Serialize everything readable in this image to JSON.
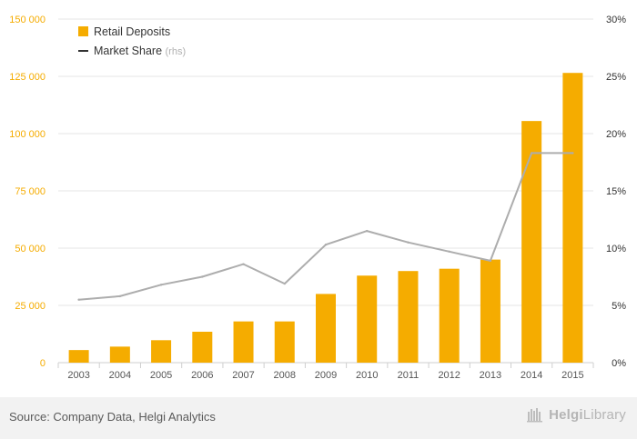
{
  "chart_data": {
    "type": "bar",
    "categories": [
      "2003",
      "2004",
      "2005",
      "2006",
      "2007",
      "2008",
      "2009",
      "2010",
      "2011",
      "2012",
      "2013",
      "2014",
      "2015"
    ],
    "series": [
      {
        "name": "Retail Deposits",
        "type": "bar",
        "axis": "left",
        "color": "#f5ac00",
        "values": [
          5500,
          7000,
          9800,
          13500,
          18000,
          18000,
          30000,
          38000,
          40000,
          41000,
          45000,
          105500,
          126500
        ]
      },
      {
        "name": "Market Share",
        "type": "line",
        "axis": "right",
        "color": "#adadad",
        "values": [
          5.5,
          5.8,
          6.8,
          7.5,
          8.6,
          6.9,
          10.3,
          11.5,
          10.5,
          9.7,
          8.9,
          18.3,
          18.3
        ]
      }
    ],
    "legend": [
      {
        "label": "Retail Deposits",
        "suffix": ""
      },
      {
        "label": "Market Share",
        "suffix": "(rhs)"
      }
    ],
    "ylim_left": [
      0,
      150000
    ],
    "yticks_left": [
      "0",
      "25 000",
      "50 000",
      "75 000",
      "100 000",
      "125 000",
      "150 000"
    ],
    "ylim_right": [
      0,
      30
    ],
    "yticks_right": [
      "0%",
      "5%",
      "10%",
      "15%",
      "20%",
      "25%",
      "30%"
    ],
    "grid": true,
    "legend_position": "top-left",
    "colors": {
      "left_axis": "#f5ac00",
      "right_axis": "#333333",
      "grid": "#e6e6e6",
      "legend_line": "#333333"
    }
  },
  "footer": {
    "source": "Source: Company Data, Helgi Analytics",
    "logo_text": "Helgi",
    "logo_text_2": "Library",
    "logo_icon": "bookshelf-icon"
  }
}
